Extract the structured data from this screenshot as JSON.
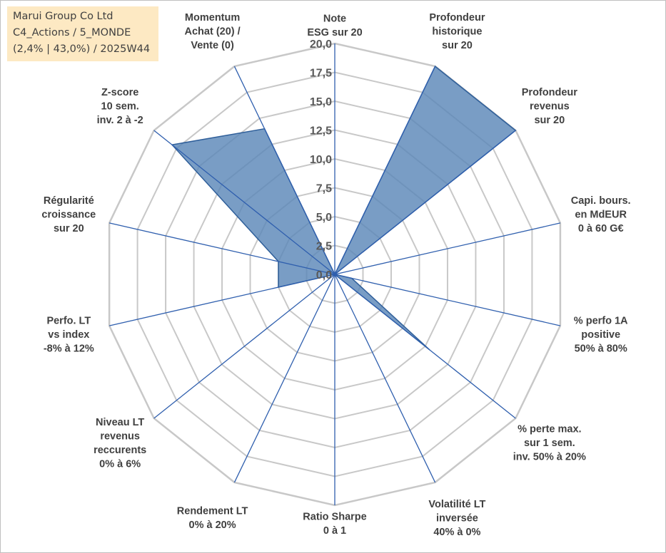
{
  "info": {
    "line1": "Marui Group Co Ltd",
    "line2": "C4_Actions / 5_MONDE",
    "line3": "(2,4% | 43,0%) / 2025W44"
  },
  "colors": {
    "series_fill": "#5b87b8",
    "series_line": "#2f5f9a",
    "grid": "#c8c8c8",
    "axis_line": "#2f5fae",
    "info_bg": "#fde9c3"
  },
  "chart_data": {
    "type": "radar",
    "rmin": 0,
    "rmax": 20,
    "tick_step": 2.5,
    "grid": true,
    "tick_labels": [
      "0,0",
      "2,5",
      "5,0",
      "7,5",
      "10,0",
      "12,5",
      "15,0",
      "17,5",
      "20,0"
    ],
    "axes": [
      [
        "Note",
        "ESG sur 20"
      ],
      [
        "Profondeur",
        "historique",
        "sur 20"
      ],
      [
        "Profondeur",
        "revenus",
        "sur 20"
      ],
      [
        "Capi. bours.",
        "en MdEUR",
        "0 à 60 G€"
      ],
      [
        "% perfo 1A",
        "positive",
        "50% à 80%"
      ],
      [
        "% perte max.",
        "sur 1 sem.",
        "inv. 50% à 20%"
      ],
      [
        "Volatilité LT",
        "inversée",
        "40% à 0%"
      ],
      [
        "Ratio Sharpe",
        "0 à 1"
      ],
      [
        "Rendement LT",
        "0% à 20%"
      ],
      [
        "Niveau LT",
        "revenus",
        "reccurents",
        "0% à 6%"
      ],
      [
        "Perfo. LT",
        "vs index",
        "-8% à 12%"
      ],
      [
        "Régularité",
        "croissance",
        "sur 20"
      ],
      [
        "Z-score",
        "10 sem.",
        "inv. 2 à -2"
      ],
      [
        "Momentum",
        "Achat (20) /",
        "Vente (0)"
      ]
    ],
    "series": [
      {
        "values": [
          0,
          20,
          20,
          0,
          1.5,
          10.5,
          0,
          0,
          0,
          0,
          5,
          5,
          18,
          14
        ]
      }
    ]
  }
}
